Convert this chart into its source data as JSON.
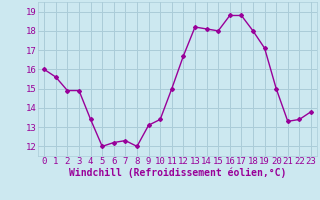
{
  "x": [
    0,
    1,
    2,
    3,
    4,
    5,
    6,
    7,
    8,
    9,
    10,
    11,
    12,
    13,
    14,
    15,
    16,
    17,
    18,
    19,
    20,
    21,
    22,
    23
  ],
  "y": [
    16.0,
    15.6,
    14.9,
    14.9,
    13.4,
    12.0,
    12.2,
    12.3,
    12.0,
    13.1,
    13.4,
    15.0,
    16.7,
    18.2,
    18.1,
    18.0,
    18.8,
    18.8,
    18.0,
    17.1,
    15.0,
    13.3,
    13.4,
    13.8
  ],
  "line_color": "#990099",
  "marker": "D",
  "marker_size": 2,
  "bg_color": "#cce8f0",
  "grid_color": "#aaccd8",
  "xlabel": "Windchill (Refroidissement éolien,°C)",
  "xlabel_color": "#990099",
  "xlabel_fontsize": 7,
  "xtick_labels": [
    "0",
    "1",
    "2",
    "3",
    "4",
    "5",
    "6",
    "7",
    "8",
    "9",
    "10",
    "11",
    "12",
    "13",
    "14",
    "15",
    "16",
    "17",
    "18",
    "19",
    "20",
    "21",
    "22",
    "23"
  ],
  "ytick_values": [
    12,
    13,
    14,
    15,
    16,
    17,
    18,
    19
  ],
  "ylim": [
    11.5,
    19.5
  ],
  "xlim": [
    -0.5,
    23.5
  ],
  "tick_color": "#990099",
  "tick_fontsize": 6.5,
  "line_width": 1.0
}
